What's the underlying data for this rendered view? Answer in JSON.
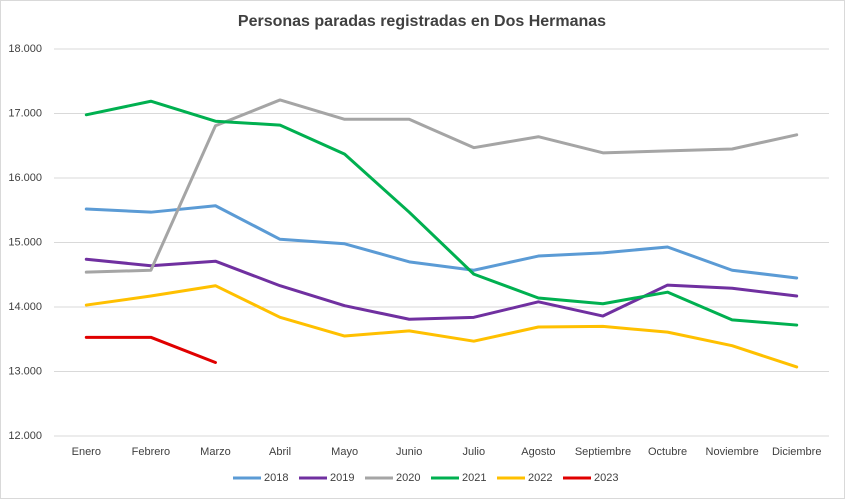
{
  "chart_data": {
    "type": "line",
    "title": "Personas paradas registradas en Dos Hermanas",
    "categories": [
      "Enero",
      "Febrero",
      "Marzo",
      "Abril",
      "Mayo",
      "Junio",
      "Julio",
      "Agosto",
      "Septiembre",
      "Octubre",
      "Noviembre",
      "Diciembre"
    ],
    "series": [
      {
        "name": "2018",
        "color": "#5b9bd5",
        "values": [
          15520,
          15470,
          15570,
          15050,
          14980,
          14700,
          14570,
          14790,
          14840,
          14930,
          14570,
          14450
        ]
      },
      {
        "name": "2019",
        "color": "#7030a0",
        "values": [
          14740,
          14640,
          14710,
          14330,
          14020,
          13810,
          13840,
          14080,
          13860,
          14340,
          14290,
          14170
        ]
      },
      {
        "name": "2020",
        "color": "#a5a5a5",
        "values": [
          14540,
          14570,
          16810,
          17210,
          16910,
          16910,
          16470,
          16640,
          16390,
          16420,
          16450,
          16670
        ]
      },
      {
        "name": "2021",
        "color": "#00b050",
        "values": [
          16980,
          17190,
          16880,
          16820,
          16370,
          15470,
          14510,
          14140,
          14050,
          14230,
          13800,
          13720
        ]
      },
      {
        "name": "2022",
        "color": "#ffc000",
        "values": [
          14030,
          14170,
          14330,
          13840,
          13550,
          13630,
          13470,
          13690,
          13700,
          13610,
          13400,
          13070
        ]
      },
      {
        "name": "2023",
        "color": "#e00000",
        "values": [
          13530,
          13530,
          13140,
          null,
          null,
          null,
          null,
          null,
          null,
          null,
          null,
          null
        ]
      }
    ],
    "ylim": [
      12000,
      18000
    ],
    "yticks": [
      {
        "value": 12000,
        "label": "12.000"
      },
      {
        "value": 13000,
        "label": "13.000"
      },
      {
        "value": 14000,
        "label": "14.000"
      },
      {
        "value": 15000,
        "label": "15.000"
      },
      {
        "value": 16000,
        "label": "16.000"
      },
      {
        "value": 17000,
        "label": "17.000"
      },
      {
        "value": 18000,
        "label": "18.000"
      }
    ],
    "grid": true,
    "legend": "bottom"
  }
}
